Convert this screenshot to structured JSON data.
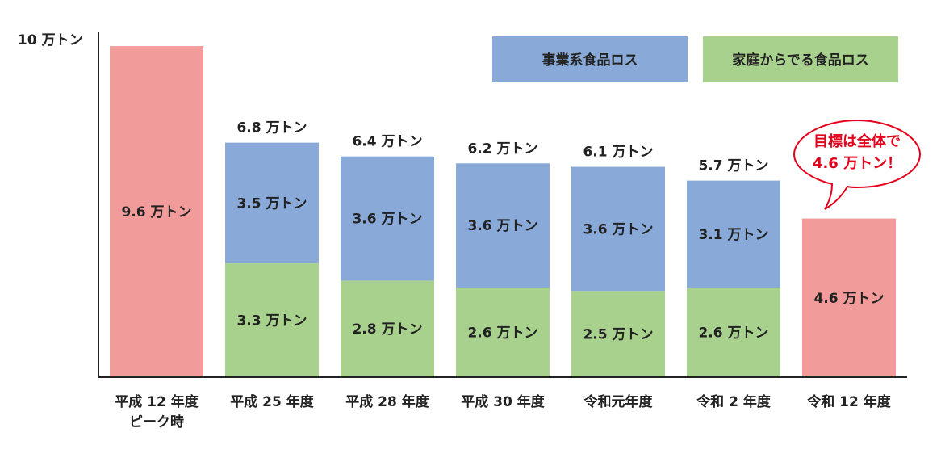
{
  "chart_data": {
    "type": "bar",
    "stacked": true,
    "y_unit_label": "10 万トン",
    "ylim": [
      0,
      10
    ],
    "categories": [
      [
        "平成 12 年度",
        "ピーク時"
      ],
      [
        "平成 25 年度"
      ],
      [
        "平成 28 年度"
      ],
      [
        "平成 30 年度"
      ],
      [
        "令和元年度"
      ],
      [
        "令和 2 年度"
      ],
      [
        "令和 12 年度"
      ]
    ],
    "bars": [
      {
        "kind": "single",
        "value": 9.6,
        "label": "9.6 万トン",
        "color": "#f19c9a"
      },
      {
        "kind": "stack",
        "total": 6.8,
        "total_label": "6.8 万トン",
        "business": 3.5,
        "business_label": "3.5 万トン",
        "household": 3.3,
        "household_label": "3.3 万トン"
      },
      {
        "kind": "stack",
        "total": 6.4,
        "total_label": "6.4 万トン",
        "business": 3.6,
        "business_label": "3.6 万トン",
        "household": 2.8,
        "household_label": "2.8 万トン"
      },
      {
        "kind": "stack",
        "total": 6.2,
        "total_label": "6.2 万トン",
        "business": 3.6,
        "business_label": "3.6 万トン",
        "household": 2.6,
        "household_label": "2.6 万トン"
      },
      {
        "kind": "stack",
        "total": 6.1,
        "total_label": "6.1 万トン",
        "business": 3.6,
        "business_label": "3.6 万トン",
        "household": 2.5,
        "household_label": "2.5 万トン"
      },
      {
        "kind": "stack",
        "total": 5.7,
        "total_label": "5.7 万トン",
        "business": 3.1,
        "business_label": "3.1 万トン",
        "household": 2.6,
        "household_label": "2.6 万トン"
      },
      {
        "kind": "single",
        "value": 4.6,
        "label": "4.6 万トン",
        "color": "#f19c9a"
      }
    ],
    "series": [
      {
        "name": "事業系食品ロス",
        "color": "#89aad8"
      },
      {
        "name": "家庭からでる食品ロス",
        "color": "#a9d18e"
      }
    ],
    "legend_position": "top-right",
    "grid": false,
    "annotation": [
      "目標は全体で",
      "4.6 万トン！"
    ],
    "annotation_color": "#e3001b"
  }
}
